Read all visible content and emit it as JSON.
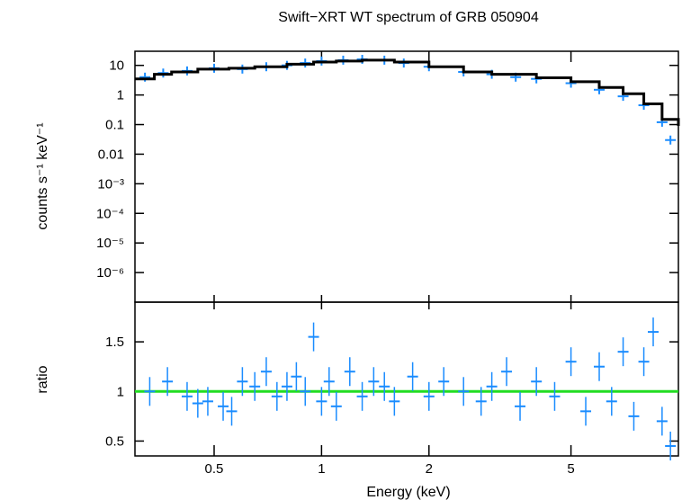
{
  "chart_data": [
    {
      "type": "scatter",
      "title": "Swift−XRT WT spectrum of GRB 050904",
      "ylabel": "counts s⁻¹ keV⁻¹",
      "xlabel": "",
      "xscale": "log",
      "yscale": "log",
      "xlim": [
        0.3,
        10
      ],
      "ylim": [
        1e-07,
        30
      ],
      "yticks": [
        {
          "value": 10,
          "label": "10"
        },
        {
          "value": 1,
          "label": "1"
        },
        {
          "value": 0.1,
          "label": "0.1"
        },
        {
          "value": 0.01,
          "label": "0.01"
        },
        {
          "value": 0.001,
          "label": "10⁻³"
        },
        {
          "value": 0.0001,
          "label": "10⁻⁴"
        },
        {
          "value": 1e-05,
          "label": "10⁻⁵"
        },
        {
          "value": 1e-06,
          "label": "10⁻⁶"
        }
      ],
      "series": [
        {
          "kind": "data",
          "color": "#1a8cff",
          "x": [
            0.32,
            0.36,
            0.42,
            0.5,
            0.6,
            0.7,
            0.8,
            0.9,
            1.0,
            1.15,
            1.3,
            1.5,
            1.7,
            2.0,
            2.5,
            3.0,
            3.5,
            4.0,
            5.0,
            6.0,
            7.0,
            8.0,
            9.0,
            9.5
          ],
          "y": [
            4,
            5.5,
            6.5,
            8,
            7.5,
            9,
            10,
            12,
            14,
            15,
            16,
            15,
            12,
            9,
            6,
            5,
            4,
            3.5,
            2.5,
            1.5,
            0.9,
            0.45,
            0.12,
            0.03
          ]
        },
        {
          "kind": "model",
          "color": "#000000",
          "x": [
            0.3,
            0.34,
            0.38,
            0.45,
            0.55,
            0.65,
            0.8,
            0.95,
            1.1,
            1.3,
            1.6,
            2.0,
            2.5,
            3.0,
            4.0,
            5.0,
            6.0,
            7.0,
            8.0,
            9.0,
            10.0
          ],
          "y": [
            3.5,
            5.0,
            6.0,
            7.5,
            8.0,
            9.0,
            11,
            13,
            14,
            15,
            13,
            9,
            6,
            5,
            3.8,
            2.8,
            1.8,
            1.1,
            0.5,
            0.15,
            0.09
          ]
        }
      ]
    },
    {
      "type": "scatter",
      "title": "",
      "ylabel": "ratio",
      "xlabel": "Energy (keV)",
      "xscale": "log",
      "yscale": "linear",
      "xlim": [
        0.3,
        10
      ],
      "ylim": [
        0.35,
        1.9
      ],
      "yticks": [
        {
          "value": 1.5,
          "label": "1.5"
        },
        {
          "value": 1,
          "label": "1"
        },
        {
          "value": 0.5,
          "label": "0.5"
        }
      ],
      "xticks": [
        {
          "value": 0.5,
          "label": "0.5"
        },
        {
          "value": 1,
          "label": "1"
        },
        {
          "value": 2,
          "label": "2"
        },
        {
          "value": 5,
          "label": "5"
        }
      ],
      "reference_line": {
        "value": 1,
        "color": "#22dd22"
      },
      "series": [
        {
          "kind": "ratio",
          "color": "#1a8cff",
          "x": [
            0.33,
            0.37,
            0.42,
            0.45,
            0.48,
            0.53,
            0.56,
            0.6,
            0.65,
            0.7,
            0.75,
            0.8,
            0.85,
            0.9,
            0.95,
            1.0,
            1.05,
            1.1,
            1.2,
            1.3,
            1.4,
            1.5,
            1.6,
            1.8,
            2.0,
            2.2,
            2.5,
            2.8,
            3.0,
            3.3,
            3.6,
            4.0,
            4.5,
            5.0,
            5.5,
            6.0,
            6.5,
            7.0,
            7.5,
            8.0,
            8.5,
            9.0,
            9.5
          ],
          "y": [
            1.0,
            1.1,
            0.95,
            0.88,
            0.9,
            0.85,
            0.8,
            1.1,
            1.05,
            1.2,
            0.95,
            1.05,
            1.15,
            1.0,
            1.55,
            0.9,
            1.1,
            0.85,
            1.2,
            0.95,
            1.1,
            1.05,
            0.9,
            1.15,
            0.95,
            1.1,
            1.0,
            0.9,
            1.05,
            1.2,
            0.85,
            1.1,
            0.95,
            1.3,
            0.8,
            1.25,
            0.9,
            1.4,
            0.75,
            1.3,
            1.6,
            0.7,
            0.45
          ]
        }
      ]
    }
  ]
}
